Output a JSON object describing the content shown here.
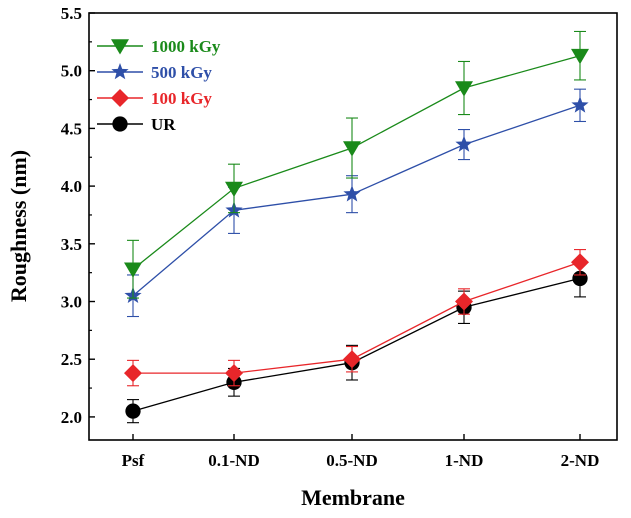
{
  "chart_data": {
    "type": "line",
    "title": "",
    "xlabel": "Membrane",
    "ylabel": "Roughness (nm)",
    "categories": [
      "Psf",
      "0.1-ND",
      "0.5-ND",
      "1-ND",
      "2-ND"
    ],
    "ylim": [
      1.8,
      5.5
    ],
    "yticks": [
      "2.0",
      "2.5",
      "3.0",
      "3.5",
      "4.0",
      "4.5",
      "5.0",
      "5.5"
    ],
    "grid": false,
    "legend_position": "top-left",
    "series": [
      {
        "name": "1000 kGy",
        "color": "#1a8a1a",
        "marker": "triangle-down",
        "values": [
          3.28,
          3.98,
          4.33,
          4.85,
          5.13
        ],
        "errors": [
          0.25,
          0.21,
          0.26,
          0.23,
          0.21
        ]
      },
      {
        "name": "500 kGy",
        "color": "#2e4fa8",
        "marker": "star",
        "values": [
          3.05,
          3.79,
          3.93,
          4.36,
          4.7
        ],
        "errors": [
          0.18,
          0.2,
          0.16,
          0.13,
          0.14
        ]
      },
      {
        "name": "100 kGy",
        "color": "#e8262a",
        "marker": "diamond",
        "values": [
          2.38,
          2.38,
          2.5,
          3.0,
          3.34
        ],
        "errors": [
          0.11,
          0.11,
          0.11,
          0.11,
          0.11
        ]
      },
      {
        "name": "UR",
        "color": "#000000",
        "marker": "circle",
        "values": [
          2.05,
          2.3,
          2.47,
          2.95,
          3.2
        ],
        "errors": [
          0.1,
          0.12,
          0.15,
          0.14,
          0.16
        ]
      }
    ]
  }
}
